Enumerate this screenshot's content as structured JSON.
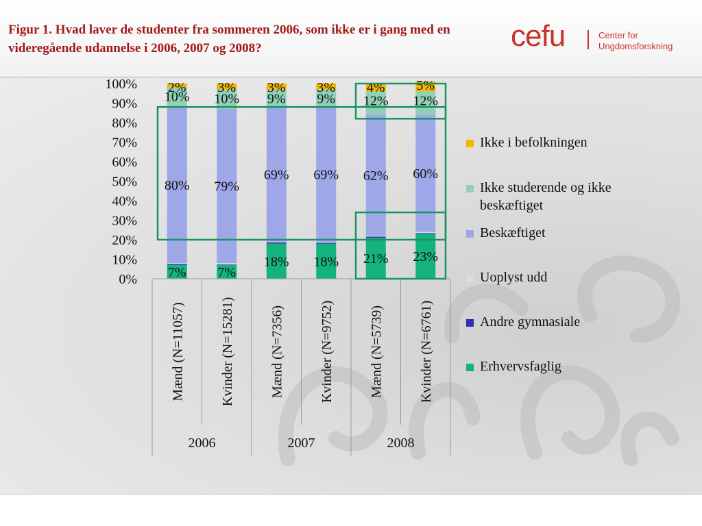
{
  "slide": {
    "title": "Figur 1. Hvad laver de studenter fra sommeren 2006, som ikke er i gang med en videregående udannelse i 2006, 2007 og 2008?",
    "logo_word": "cefu",
    "logo_sub_line1": "Center for",
    "logo_sub_line2": "Ungdomsforskning",
    "watermark_glyph": "ꝭ"
  },
  "colors": {
    "erhvervsfaglig": "#14b37e",
    "andre_gymnasiale": "#2b2fb8",
    "uoplyst": "#dcdcdc",
    "beskaeftiget": "#9ea7e8",
    "ikke_studerende": "#8fd0b6",
    "ikke_i_befolkningen": "#f2b800",
    "highlight": "#199461",
    "title": "#a31a1a",
    "logo": "#c8322a"
  },
  "chart_data": {
    "type": "bar",
    "stacked": true,
    "categories": [
      "Mænd (N=11057)",
      "Kvinder (N=15281)",
      "Mænd (N=7356)",
      "Kvinder (N=9752)",
      "Mænd (N=5739)",
      "Kvinder (N=6761)"
    ],
    "groups": [
      {
        "label": "2006",
        "span": 2
      },
      {
        "label": "2007",
        "span": 2
      },
      {
        "label": "2008",
        "span": 2
      }
    ],
    "series": [
      {
        "name": "Erhvervsfaglig",
        "color_key": "erhvervsfaglig",
        "values": [
          7,
          7,
          18,
          18,
          21,
          23
        ],
        "labels": [
          "7%",
          "7%",
          "18%",
          "18%",
          "21%",
          "23%"
        ]
      },
      {
        "name": "Andre gymnasiale",
        "color_key": "andre_gymnasiale",
        "values": [
          0.5,
          0.3,
          0.6,
          0.5,
          0.6,
          0.4
        ],
        "labels": [
          "",
          "",
          "",
          "",
          "",
          ""
        ]
      },
      {
        "name": "Uoplyst udd",
        "color_key": "uoplyst",
        "values": [
          0.5,
          0.7,
          0.4,
          0.5,
          0.4,
          0.6
        ],
        "labels": [
          "",
          "",
          "",
          "",
          "",
          ""
        ]
      },
      {
        "name": "Beskæftiget",
        "color_key": "beskaeftiget",
        "values": [
          80,
          79,
          69,
          69,
          62,
          60
        ],
        "labels": [
          "80%",
          "79%",
          "69%",
          "69%",
          "62%",
          "60%"
        ]
      },
      {
        "name": "Ikke studerende og ikke beskæftiget",
        "color_key": "ikke_studerende",
        "values": [
          10,
          10,
          9,
          9,
          12,
          12
        ],
        "labels": [
          "10%",
          "10%",
          "9%",
          "9%",
          "12%",
          "12%"
        ]
      },
      {
        "name": "Ikke i befolkningen",
        "color_key": "ikke_i_befolkningen",
        "values": [
          2,
          3,
          3,
          3,
          4,
          5
        ],
        "labels": [
          "2%",
          "3%",
          "3%",
          "3%",
          "4%",
          "5%"
        ]
      }
    ],
    "legend_order": [
      "Ikke i befolkningen",
      "Ikke studerende og ikke beskæftiget",
      "Beskæftiget",
      "Uoplyst udd",
      "Andre gymnasiale",
      "Erhvervsfaglig"
    ],
    "legend_position": "right",
    "y_ticks": [
      "0%",
      "10%",
      "20%",
      "30%",
      "40%",
      "50%",
      "60%",
      "70%",
      "80%",
      "90%",
      "100%"
    ],
    "ylim": [
      0,
      100
    ],
    "highlight_boxes": [
      {
        "y_from": 20,
        "y_to": 88,
        "categories": "all"
      },
      {
        "y_from": 0,
        "y_to": 34,
        "categories": [
          4,
          5
        ]
      },
      {
        "y_from": 82,
        "y_to": 100,
        "categories": [
          4,
          5
        ]
      }
    ],
    "title": "",
    "xlabel": "",
    "ylabel": ""
  },
  "legend": {
    "items": [
      {
        "label": "Ikke i befolkningen",
        "color_key": "ikke_i_befolkningen"
      },
      {
        "label": "Ikke studerende og ikke beskæftiget",
        "color_key": "ikke_studerende"
      },
      {
        "label": "Beskæftiget",
        "color_key": "beskaeftiget"
      },
      {
        "label": "Uoplyst udd",
        "color_key": "uoplyst"
      },
      {
        "label": "Andre gymnasiale",
        "color_key": "andre_gymnasiale"
      },
      {
        "label": "Erhvervsfaglig",
        "color_key": "erhvervsfaglig"
      }
    ]
  }
}
